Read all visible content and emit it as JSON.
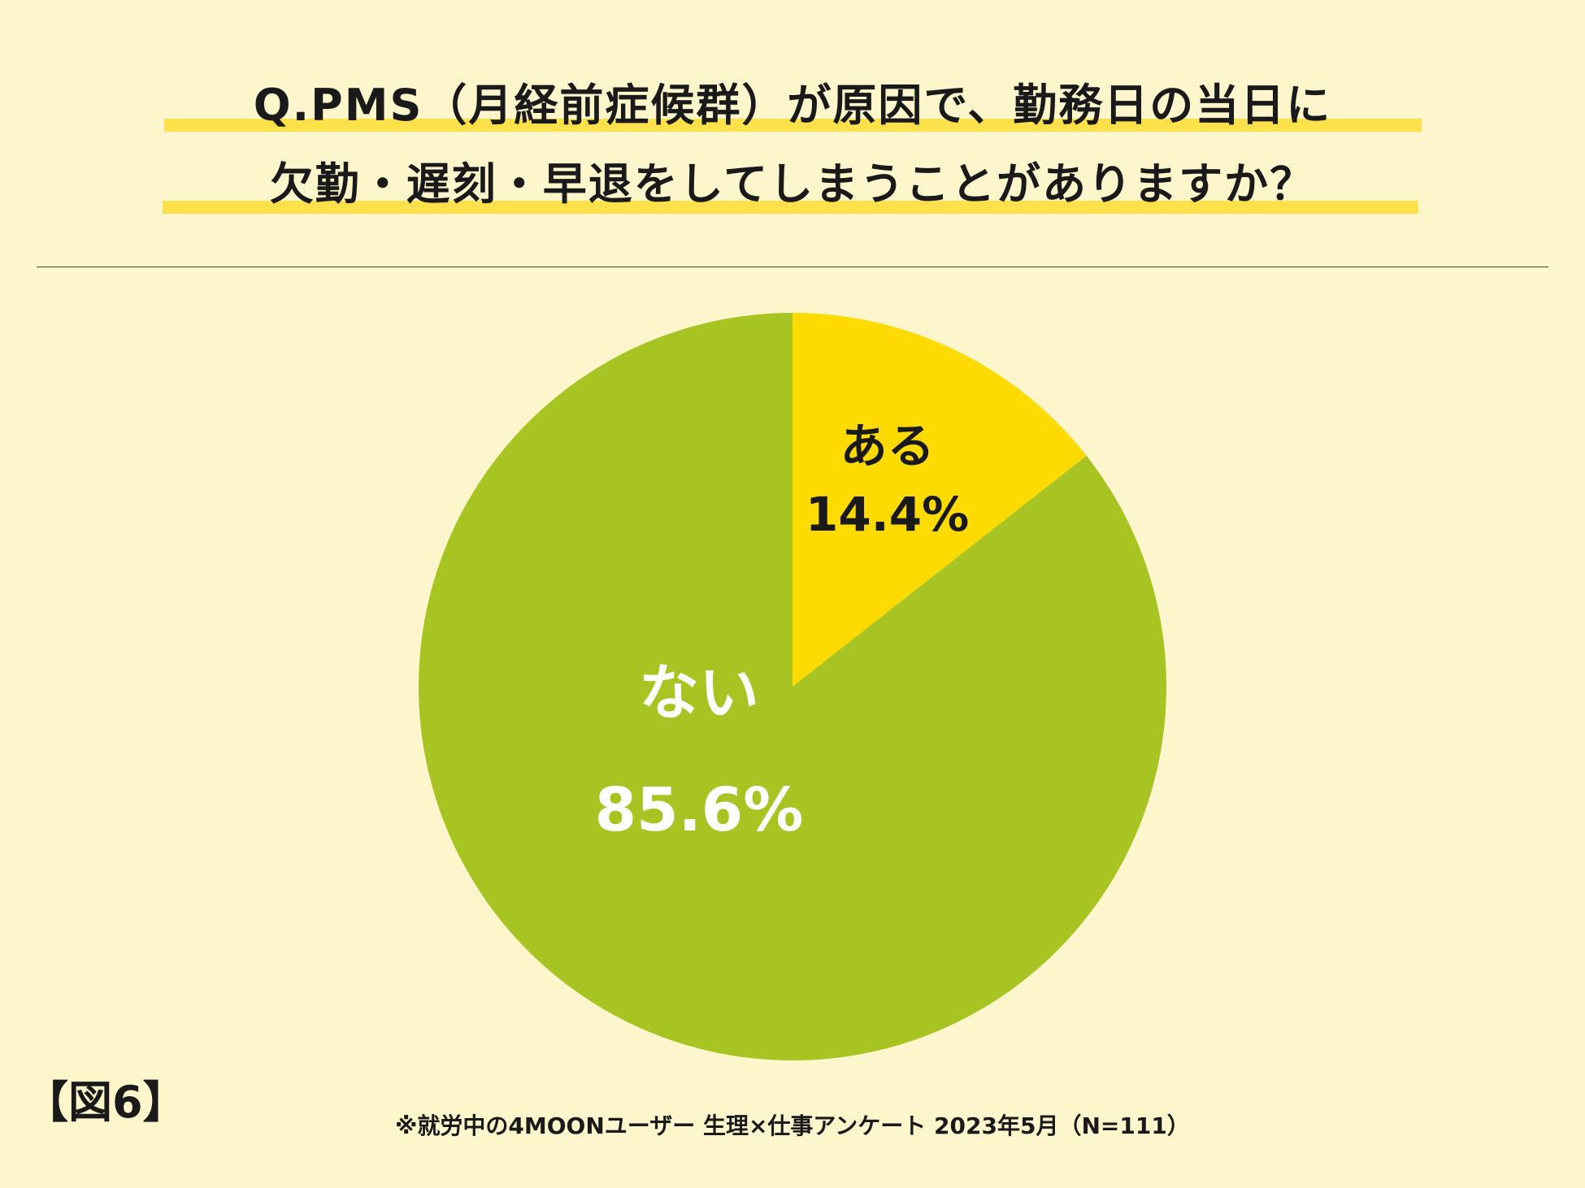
{
  "title": {
    "line1": "Q.PMS（月経前症候群）が原因で、勤務日の当日に",
    "line2": "欠勤・遅刻・早退をしてしまうことがありますか？"
  },
  "figure_label": "【図6】",
  "source": "※就労中の4MOONユーザー 生理×仕事アンケート 2023年5月（N=111）",
  "colors": {
    "background": "#fdf6cd",
    "highlight": "#fde14a",
    "aru": "#fddb00",
    "nai": "#a8c423"
  },
  "chart_data": {
    "type": "pie",
    "title": "Q.PMS（月経前症候群）が原因で、勤務日の当日に欠勤・遅刻・早退をしてしまうことがありますか？",
    "slices": [
      {
        "label": "ある",
        "value": 14.4,
        "value_label": "14.4%",
        "color": "#fddb00",
        "text_color": "#1a1a1a"
      },
      {
        "label": "ない",
        "value": 85.6,
        "value_label": "85.6%",
        "color": "#a8c423",
        "text_color": "#ffffff"
      }
    ],
    "start_angle": "12 o'clock",
    "direction": "clockwise"
  }
}
